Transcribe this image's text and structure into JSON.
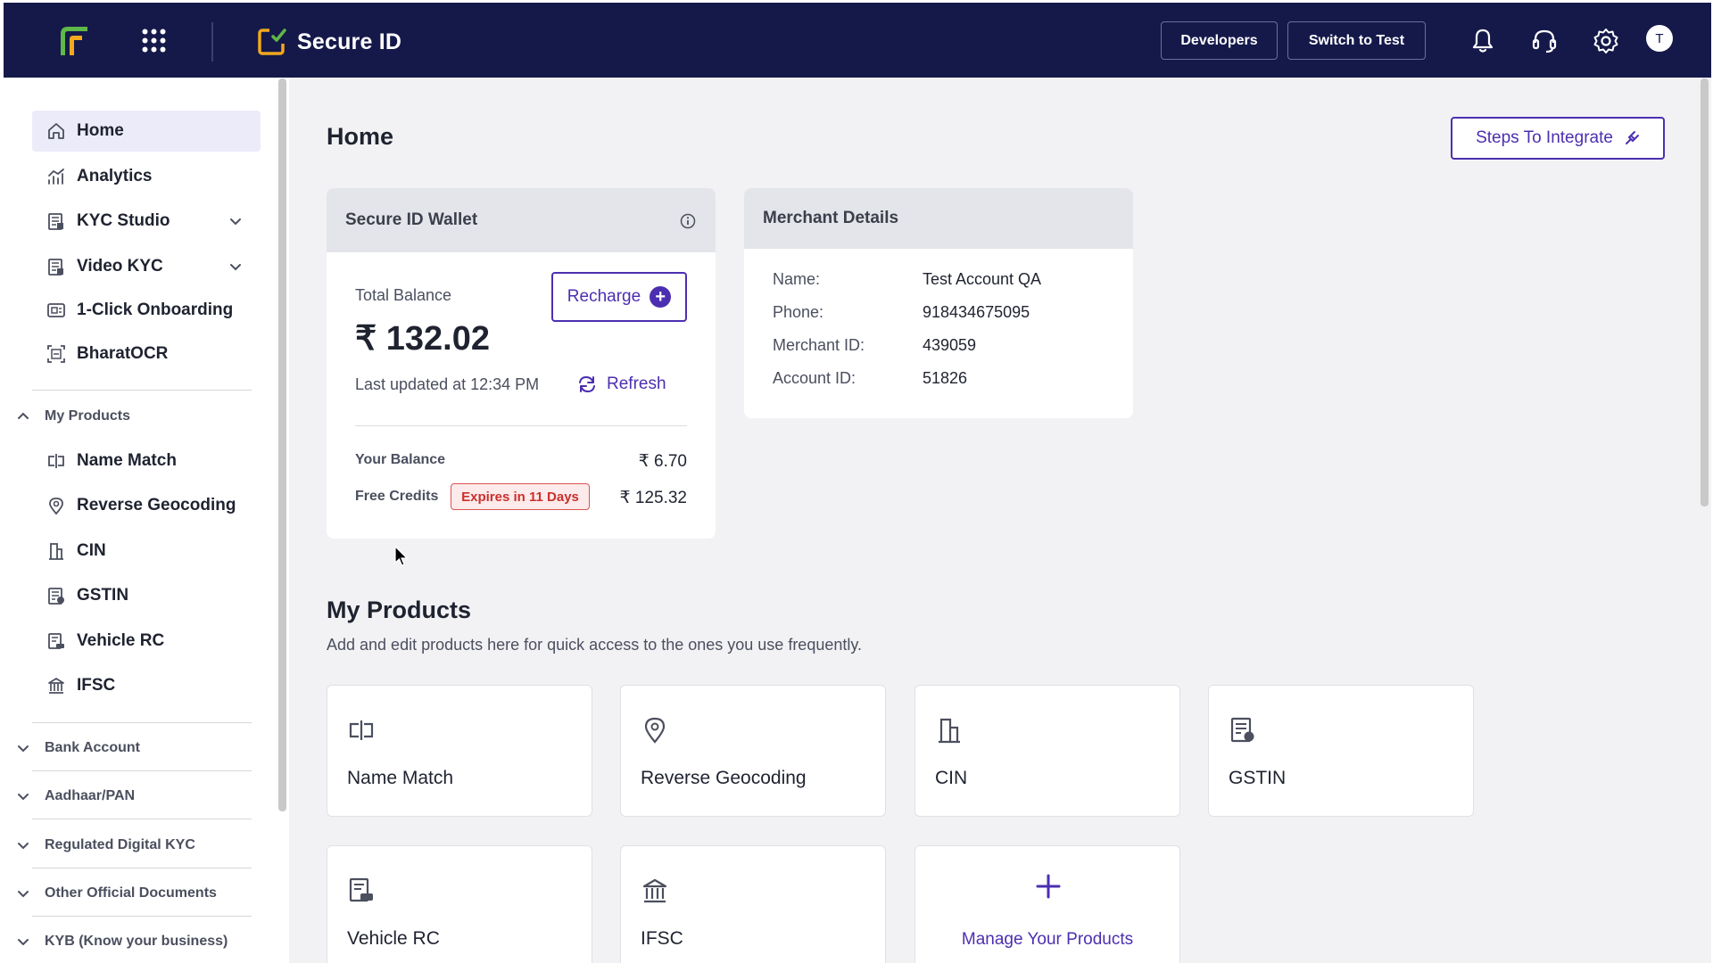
{
  "topbar": {
    "brand_title": "Secure ID",
    "developers_label": "Developers",
    "switch_label": "Switch to Test",
    "avatar_initial": "T",
    "colors": {
      "bg": "#15194a",
      "logo_green": "#5fb847",
      "logo_orange": "#f3a81d"
    }
  },
  "sidebar": {
    "items": [
      {
        "label": "Home",
        "icon": "home-icon",
        "active": true
      },
      {
        "label": "Analytics",
        "icon": "analytics-icon"
      },
      {
        "label": "KYC Studio",
        "icon": "studio-icon",
        "expandable": true
      },
      {
        "label": "Video KYC",
        "icon": "video-kyc-icon",
        "expandable": true
      },
      {
        "label": "1-Click Onboarding",
        "icon": "onboarding-icon"
      },
      {
        "label": "BharatOCR",
        "icon": "ocr-icon"
      }
    ],
    "my_products_label": "My Products",
    "product_items": [
      {
        "label": "Name Match",
        "icon": "name-match-icon"
      },
      {
        "label": "Reverse Geocoding",
        "icon": "location-pin-icon"
      },
      {
        "label": "CIN",
        "icon": "building-icon"
      },
      {
        "label": "GSTIN",
        "icon": "gstin-document-icon"
      },
      {
        "label": "Vehicle RC",
        "icon": "vehicle-rc-icon"
      },
      {
        "label": "IFSC",
        "icon": "bank-icon"
      }
    ],
    "groups": [
      "Bank Account",
      "Aadhaar/PAN",
      "Regulated Digital KYC",
      "Other Official Documents",
      "KYB (Know your business)"
    ]
  },
  "main": {
    "page_title": "Home",
    "steps_button": "Steps To Integrate",
    "wallet": {
      "title": "Secure ID Wallet",
      "total_balance_label": "Total Balance",
      "recharge_label": "Recharge",
      "balance": "₹ 132.02",
      "last_updated": "Last updated at 12:34 PM",
      "refresh_label": "Refresh",
      "your_balance_label": "Your Balance",
      "your_balance_value": "₹ 6.70",
      "free_credits_label": "Free Credits",
      "expiry_badge": "Expires in 11 Days",
      "free_credits_value": "₹ 125.32"
    },
    "merchant": {
      "title": "Merchant Details",
      "rows": [
        {
          "label": "Name:",
          "value": "Test Account QA"
        },
        {
          "label": "Phone:",
          "value": "918434675095"
        },
        {
          "label": "Merchant ID:",
          "value": "439059"
        },
        {
          "label": "Account ID:",
          "value": "51826"
        }
      ]
    },
    "products_section": {
      "title": "My Products",
      "subtitle": "Add and edit products here for quick access to the ones you use frequently.",
      "cards": [
        {
          "label": "Name Match",
          "icon": "name-match-icon"
        },
        {
          "label": "Reverse Geocoding",
          "icon": "location-pin-icon"
        },
        {
          "label": "CIN",
          "icon": "building-icon"
        },
        {
          "label": "GSTIN",
          "icon": "gstin-document-icon"
        },
        {
          "label": "Vehicle RC",
          "icon": "vehicle-rc-icon"
        },
        {
          "label": "IFSC",
          "icon": "bank-icon"
        }
      ],
      "manage_label": "Manage Your Products"
    },
    "accent_color": "#4c2fb0"
  }
}
